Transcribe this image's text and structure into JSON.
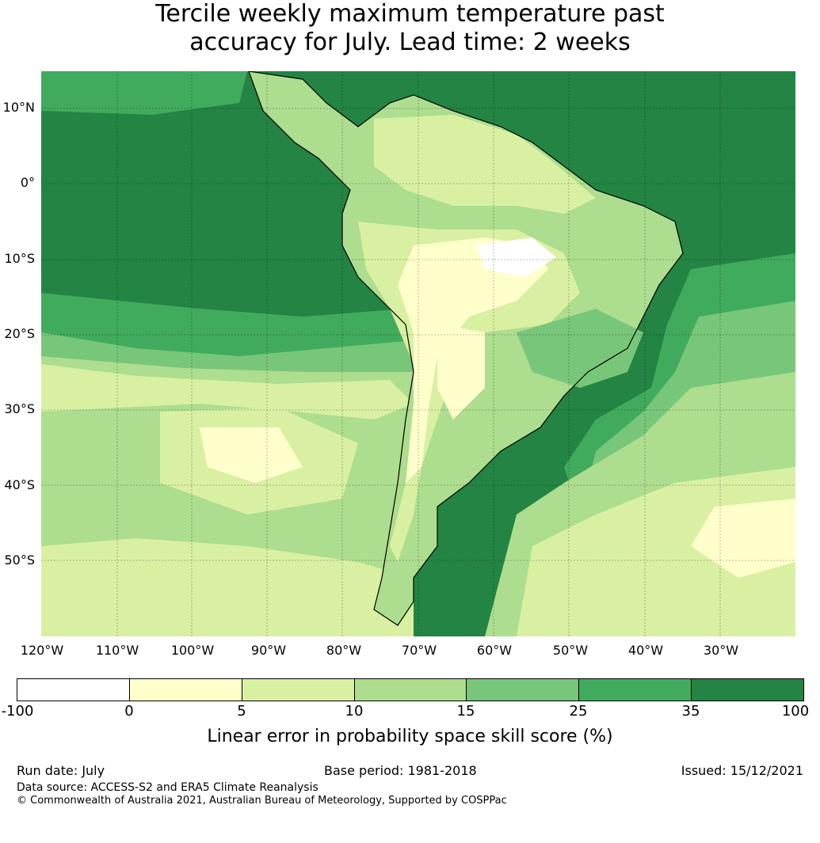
{
  "title": {
    "line1": "Tercile weekly maximum temperature past",
    "line2": "accuracy for July. Lead time: 2 weeks"
  },
  "map": {
    "lat_labels": [
      "10°N",
      "0°",
      "10°S",
      "20°S",
      "30°S",
      "40°S",
      "50°S"
    ],
    "lon_labels": [
      "120°W",
      "110°W",
      "100°W",
      "90°W",
      "80°W",
      "70°W",
      "60°W",
      "50°W",
      "40°W",
      "30°W"
    ],
    "colors": {
      "ocean_deep": "#238443",
      "c35": "#41ab5d",
      "c25": "#78c679",
      "c15": "#addd8e",
      "c10": "#d9f0a3",
      "c5": "#ffffcc",
      "c0": "#ffffff"
    }
  },
  "colorbar": {
    "colors": [
      "#ffffff",
      "#ffffcc",
      "#d9f0a3",
      "#addd8e",
      "#78c679",
      "#41ab5d",
      "#238443"
    ],
    "ticks": [
      "-100",
      "0",
      "5",
      "10",
      "15",
      "25",
      "35",
      "100"
    ],
    "label": "Linear error in probability space skill score (%)"
  },
  "footer": {
    "run_date": "Run date: July",
    "base_period": "Base period: 1981-2018",
    "issued": "Issued: 15/12/2021",
    "data_source": "Data source: ACCESS-S2 and ERA5 Climate Reanalysis",
    "copyright": "© Commonwealth of Australia 2021, Australian Bureau of Meteorology, Supported by COSPPac"
  }
}
